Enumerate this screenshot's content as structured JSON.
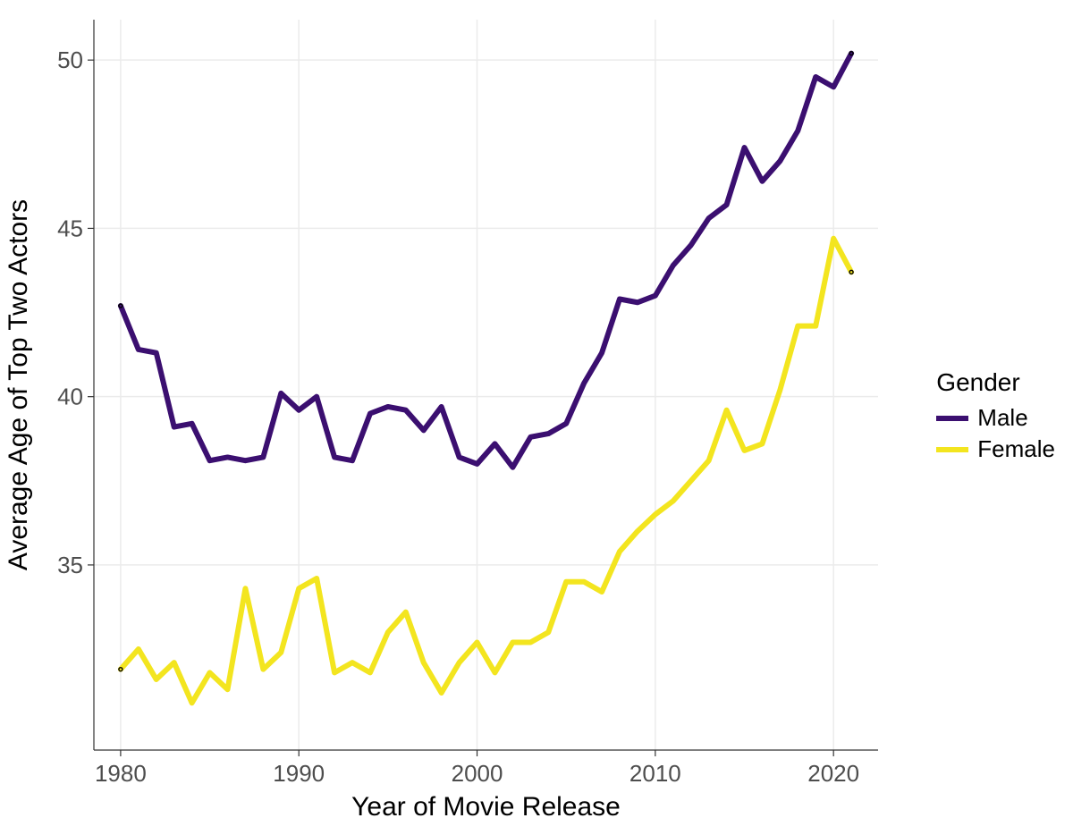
{
  "chart": {
    "type": "line",
    "background_color": "#ffffff",
    "panel_background": "#ffffff",
    "grid_color": "#ebebeb",
    "axis_color": "#333333",
    "xlabel": "Year of Movie Release",
    "ylabel": "Average Age of Top Two Actors",
    "label_fontsize": 30,
    "tick_fontsize": 26,
    "tick_label_color": "#4d4d4d",
    "xlim": [
      1978.5,
      2022.5
    ],
    "ylim": [
      29.5,
      51.2
    ],
    "xticks": [
      1980,
      1990,
      2000,
      2010,
      2020
    ],
    "yticks": [
      35,
      40,
      45,
      50
    ],
    "line_width": 6,
    "endpoint_marker": {
      "stroke": "#000000",
      "stroke_width": 1.4,
      "radius": 2
    },
    "series": [
      {
        "name": "Male",
        "color": "#3b0f70",
        "x": [
          1980,
          1981,
          1982,
          1983,
          1984,
          1985,
          1986,
          1987,
          1988,
          1989,
          1990,
          1991,
          1992,
          1993,
          1994,
          1995,
          1996,
          1997,
          1998,
          1999,
          2000,
          2001,
          2002,
          2003,
          2004,
          2005,
          2006,
          2007,
          2008,
          2009,
          2010,
          2011,
          2012,
          2013,
          2014,
          2015,
          2016,
          2017,
          2018,
          2019,
          2020,
          2021
        ],
        "y": [
          42.7,
          41.4,
          41.3,
          39.1,
          39.2,
          38.1,
          38.2,
          38.1,
          38.2,
          40.1,
          39.6,
          40.0,
          38.2,
          38.1,
          39.5,
          39.7,
          39.6,
          39.0,
          39.7,
          38.2,
          38.0,
          38.6,
          37.9,
          38.8,
          38.9,
          39.2,
          40.4,
          41.3,
          42.9,
          42.8,
          43.0,
          43.9,
          44.5,
          45.3,
          45.7,
          47.4,
          46.4,
          47.0,
          47.9,
          49.5,
          49.2,
          50.2
        ]
      },
      {
        "name": "Female",
        "color": "#f3e51f",
        "x": [
          1980,
          1981,
          1982,
          1983,
          1984,
          1985,
          1986,
          1987,
          1988,
          1989,
          1990,
          1991,
          1992,
          1993,
          1994,
          1995,
          1996,
          1997,
          1998,
          1999,
          2000,
          2001,
          2002,
          2003,
          2004,
          2005,
          2006,
          2007,
          2008,
          2009,
          2010,
          2011,
          2012,
          2013,
          2014,
          2015,
          2016,
          2017,
          2018,
          2019,
          2020,
          2021
        ],
        "y": [
          31.9,
          32.5,
          31.6,
          32.1,
          30.9,
          31.8,
          31.3,
          34.3,
          31.9,
          32.4,
          34.3,
          34.6,
          31.8,
          32.1,
          31.8,
          33.0,
          33.6,
          32.1,
          31.2,
          32.1,
          32.7,
          31.8,
          32.7,
          32.7,
          33.0,
          34.5,
          34.5,
          34.2,
          35.4,
          36.0,
          36.5,
          36.9,
          37.5,
          38.1,
          39.6,
          38.4,
          38.6,
          40.2,
          42.1,
          42.1,
          44.7,
          43.7
        ]
      }
    ],
    "legend": {
      "title": "Gender",
      "title_fontsize": 28,
      "item_fontsize": 26,
      "items": [
        {
          "label": "Male",
          "color": "#3b0f70"
        },
        {
          "label": "Female",
          "color": "#f3e51f"
        }
      ]
    }
  }
}
